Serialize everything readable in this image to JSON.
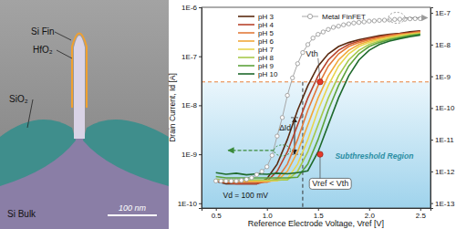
{
  "panel_image": {
    "labels": [
      "Si Fin",
      "HfO₂",
      "SiO₂",
      "Si Bulk"
    ],
    "scale_bar": "100 nm"
  },
  "chart_data": {
    "type": "line",
    "x_label": "Reference Electrode Voltage, Vref [V]",
    "y_label": "Drain Current, Id [A]",
    "log": "y",
    "legend": "top-left",
    "xlim": [
      0.36,
      2.6
    ],
    "xticks": [
      0.5,
      {
        "value": 1,
        "label": "1.0"
      },
      1.5,
      {
        "value": 2,
        "label": "2.0"
      },
      2.5
    ],
    "ylim": [
      8e-11,
      1e-06
    ],
    "yticks": [
      {
        "value": 1e-10,
        "label": "1E-10"
      },
      {
        "value": 1e-09,
        "label": "1E-9"
      },
      {
        "value": 1e-08,
        "label": "1E-8"
      },
      {
        "value": 1e-07,
        "label": "1E-7"
      },
      {
        "value": 1e-06,
        "label": "1E-6"
      }
    ],
    "y2lim": [
      7e-14,
      1.5e-07
    ],
    "y2ticks": [
      {
        "value": 1e-13,
        "label": "1E-13"
      },
      {
        "value": 1e-12,
        "label": "1E-12"
      },
      {
        "value": 1e-11,
        "label": "1E-11"
      },
      {
        "value": 1e-10,
        "label": "1E-10"
      },
      {
        "value": 1e-09,
        "label": "1E-9"
      },
      {
        "value": 1e-08,
        "label": "1E-8"
      },
      {
        "value": 1e-07,
        "label": "1E-7"
      }
    ],
    "x": [
      0.5,
      0.6,
      0.7,
      0.8,
      0.9,
      1.0,
      1.1,
      1.2,
      1.3,
      1.4,
      1.5,
      1.6,
      1.7,
      1.8,
      1.9,
      2.0,
      2.1,
      2.2,
      2.3,
      2.4,
      2.5
    ],
    "series": [
      {
        "name": "pH 3",
        "color": "#5a2a10",
        "values": [
          2.82e-10,
          2.51e-10,
          2.51e-10,
          2.51e-10,
          2.51e-10,
          3.16e-10,
          6.31e-10,
          2e-09,
          7.94e-09,
          2.51e-08,
          6.31e-08,
          1.12e-07,
          1.58e-07,
          1.91e-07,
          2.19e-07,
          2.4e-07,
          2.63e-07,
          2.82e-07,
          2.95e-07,
          3.16e-07,
          3.31e-07
        ]
      },
      {
        "name": "pH 4",
        "color": "#b8452c",
        "values": [
          2.82e-10,
          2.63e-10,
          2.51e-10,
          2.51e-10,
          2.51e-10,
          2.82e-10,
          4.47e-10,
          1.12e-09,
          3.98e-09,
          1.41e-08,
          3.98e-08,
          8.41e-08,
          1.33e-07,
          1.74e-07,
          2.04e-07,
          2.29e-07,
          2.51e-07,
          2.72e-07,
          2.88e-07,
          3.05e-07,
          3.24e-07
        ]
      },
      {
        "name": "pH 5",
        "color": "#e27a3a",
        "values": [
          2.9e-10,
          2.7e-10,
          2.7e-10,
          2.7e-10,
          2.7e-10,
          2.7e-10,
          3.16e-10,
          6.31e-10,
          2e-09,
          7.94e-09,
          2.51e-08,
          6.31e-08,
          1.12e-07,
          1.58e-07,
          1.91e-07,
          2.19e-07,
          2.4e-07,
          2.63e-07,
          2.82e-07,
          2.95e-07,
          3.16e-07
        ]
      },
      {
        "name": "pH 6",
        "color": "#f2a93b",
        "values": [
          2.9e-10,
          2.8e-10,
          2.8e-10,
          2.8e-10,
          2.8e-10,
          2.8e-10,
          2.9e-10,
          4.47e-10,
          1.12e-09,
          3.98e-09,
          1.41e-08,
          3.98e-08,
          8.41e-08,
          1.33e-07,
          1.74e-07,
          2.04e-07,
          2.29e-07,
          2.51e-07,
          2.72e-07,
          2.88e-07,
          3.05e-07
        ]
      },
      {
        "name": "pH 7",
        "color": "#e9d650",
        "values": [
          3e-10,
          2.9e-10,
          2.9e-10,
          2.9e-10,
          2.9e-10,
          2.9e-10,
          2.9e-10,
          3.16e-10,
          6.31e-10,
          2e-09,
          7.94e-09,
          2.51e-08,
          6.31e-08,
          1.12e-07,
          1.58e-07,
          1.91e-07,
          2.19e-07,
          2.4e-07,
          2.63e-07,
          2.82e-07,
          2.95e-07
        ]
      },
      {
        "name": "pH 8",
        "color": "#a8c94c",
        "values": [
          3.1e-10,
          3e-10,
          3e-10,
          3e-10,
          3e-10,
          3e-10,
          3e-10,
          3e-10,
          4.47e-10,
          1.12e-09,
          3.98e-09,
          1.41e-08,
          3.98e-08,
          8.41e-08,
          1.33e-07,
          1.74e-07,
          2.04e-07,
          2.29e-07,
          2.51e-07,
          2.72e-07,
          2.88e-07
        ]
      },
      {
        "name": "pH 9",
        "color": "#5ea33c",
        "values": [
          3.5e-10,
          3.3e-10,
          3.3e-10,
          3.3e-10,
          3.3e-10,
          3.3e-10,
          3.3e-10,
          3.3e-10,
          3.4e-10,
          6.31e-10,
          2e-09,
          7.94e-09,
          2.51e-08,
          6.31e-08,
          1.12e-07,
          1.58e-07,
          1.91e-07,
          2.19e-07,
          2.4e-07,
          2.63e-07,
          2.82e-07
        ]
      },
      {
        "name": "pH 10",
        "color": "#1f6a2c",
        "values": [
          4.2e-10,
          3.9e-10,
          4.1e-10,
          3.8e-10,
          4e-10,
          3.9e-10,
          4.1e-10,
          4e-10,
          4.2e-10,
          4.6e-10,
          1.12e-09,
          3.98e-09,
          1.41e-08,
          3.98e-08,
          8.41e-08,
          1.33e-07,
          1.74e-07,
          2.04e-07,
          2.29e-07,
          2.51e-07,
          2.72e-07
        ]
      },
      {
        "name": "Metal FinFET",
        "color": "#a6a6a6",
        "marker": "circle",
        "axis": "y2",
        "x": [
          0.5,
          0.55,
          0.6,
          0.65,
          0.7,
          0.75,
          0.8,
          0.85,
          0.9,
          0.95,
          1.0,
          1.05,
          1.1,
          1.15,
          1.2,
          1.25,
          1.3,
          1.35,
          1.4,
          1.45,
          1.5,
          1.55,
          1.6,
          1.65,
          1.7,
          1.75,
          1.8,
          1.85,
          1.9,
          1.95,
          2.0,
          2.05,
          2.1,
          2.15,
          2.2,
          2.25,
          2.3,
          2.35,
          2.4,
          2.45,
          2.5
        ],
        "values": [
          5e-13,
          5e-13,
          5e-13,
          5e-13,
          5e-13,
          5.2e-13,
          5.6e-13,
          6.3e-13,
          7.9e-13,
          1e-12,
          1.4e-12,
          3.2e-12,
          1.3e-11,
          5e-11,
          2.5e-10,
          8.9e-10,
          2.5e-09,
          5.6e-09,
          1e-08,
          1.6e-08,
          2.1e-08,
          2.5e-08,
          3e-08,
          3.5e-08,
          3.8e-08,
          4.2e-08,
          4.5e-08,
          4.8e-08,
          5e-08,
          5.2e-08,
          5.5e-08,
          5.6e-08,
          5.8e-08,
          5.9e-08,
          6e-08,
          6.2e-08,
          6.3e-08,
          6.3e-08,
          6.5e-08,
          6.6e-08,
          6.6e-08
        ]
      }
    ],
    "shaded_region": {
      "y": [
        8e-11,
        3e-08
      ]
    },
    "reference_lines": [
      {
        "axis": "y",
        "value": 3e-08,
        "color": "#e8803a",
        "line_style": "dashed"
      },
      {
        "axis": "x",
        "value": 1.35,
        "y_end": 3e-08,
        "color": "#333333",
        "line_style": "dashed"
      }
    ],
    "delta_arrow": {
      "x": 1.27,
      "y": [
        5.6e-09,
        1e-09
      ],
      "x_end": 1.35
    },
    "axis_arrows": [
      {
        "x": [
          1.15,
          0.62
        ],
        "y": 1.2e-09,
        "color": "#3a8a3a"
      },
      {
        "x": [
          2.27,
          2.57
        ],
        "y2": 7e-08,
        "color": "#9a9a9a"
      }
    ],
    "annotations": [
      {
        "text": "Vth",
        "x": 1.44,
        "y": 1e-07,
        "target": [
          1.52,
          3e-08
        ],
        "color": "#e53a2a"
      },
      {
        "text": "ΔId",
        "x": 1.12,
        "y": 3e-09
      },
      {
        "text": "Vref < Vth",
        "x": 1.62,
        "y": 2.2e-10,
        "target": [
          1.52,
          1e-09
        ],
        "color": "#e53a2a"
      },
      {
        "text": "Vd = 100 mV",
        "x": 0.57,
        "y": 1.3e-10
      },
      {
        "text": "Subthreshold Region",
        "x": 2.05,
        "y": 8e-10,
        "color": "#2a8ea3"
      }
    ]
  }
}
